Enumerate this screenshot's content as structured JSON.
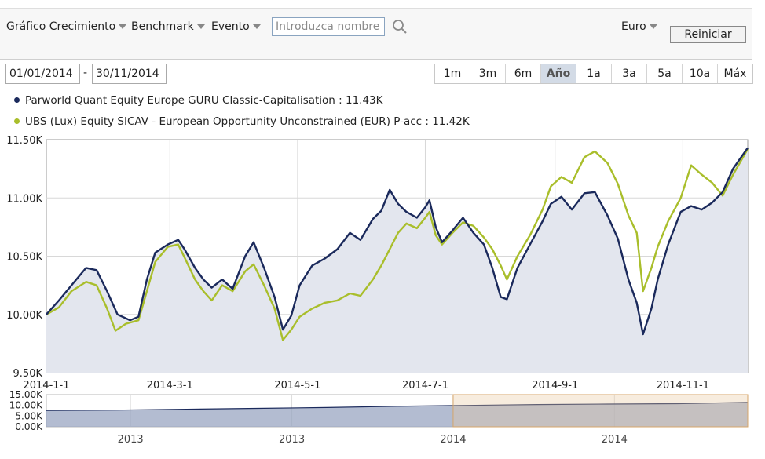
{
  "toolbar": {
    "menus": [
      {
        "label": "Gráfico Crecimiento"
      },
      {
        "label": "Benchmark"
      },
      {
        "label": "Evento"
      }
    ],
    "search_placeholder": "Introduzca nombre o",
    "currency": "Euro",
    "reset_label": "Reiniciar"
  },
  "date_range": {
    "start": "01/01/2014",
    "separator": "-",
    "end": "30/11/2014"
  },
  "range_buttons": [
    {
      "label": "1m",
      "active": false
    },
    {
      "label": "3m",
      "active": false
    },
    {
      "label": "6m",
      "active": false
    },
    {
      "label": "Año",
      "active": true
    },
    {
      "label": "1a",
      "active": false
    },
    {
      "label": "3a",
      "active": false
    },
    {
      "label": "5a",
      "active": false
    },
    {
      "label": "10a",
      "active": false
    },
    {
      "label": "Máx",
      "active": false
    }
  ],
  "legend": [
    {
      "text": "Parworld Quant Equity Europe GURU Classic-Capitalisation : 11.43K",
      "color": "#1b2a5c"
    },
    {
      "text": "UBS (Lux) Equity SICAV - European Opportunity Unconstrained (EUR) P-acc : 11.42K",
      "color": "#a9be2b"
    }
  ],
  "chart_data": [
    {
      "type": "line",
      "ylim": [
        9500,
        11500
      ],
      "xlim": [
        "2014-01-01",
        "2014-12-02"
      ],
      "yticks": [
        9500,
        10000,
        10500,
        11000,
        11500
      ],
      "ytick_labels": [
        "9.50K",
        "10.00K",
        "10.50K",
        "11.00K",
        "11.50K"
      ],
      "xticks": [
        "2014-01-01",
        "2014-03-01",
        "2014-05-01",
        "2014-07-01",
        "2014-09-01",
        "2014-11-01"
      ],
      "xtick_labels": [
        "2014-1-1",
        "2014-3-1",
        "2014-5-1",
        "2014-7-1",
        "2014-9-1",
        "2014-11-1"
      ],
      "grid": true,
      "series": [
        {
          "name": "Parworld Quant Equity Europe GURU Classic-Capitalisation",
          "color": "#1b2a5c",
          "filled": true,
          "points": [
            [
              "2014-01-01",
              10000
            ],
            [
              "2014-01-07",
              10120
            ],
            [
              "2014-01-13",
              10250
            ],
            [
              "2014-01-20",
              10400
            ],
            [
              "2014-01-25",
              10380
            ],
            [
              "2014-01-30",
              10200
            ],
            [
              "2014-02-04",
              10000
            ],
            [
              "2014-02-10",
              9950
            ],
            [
              "2014-02-14",
              9980
            ],
            [
              "2014-02-18",
              10300
            ],
            [
              "2014-02-22",
              10530
            ],
            [
              "2014-02-28",
              10600
            ],
            [
              "2014-03-05",
              10640
            ],
            [
              "2014-03-08",
              10560
            ],
            [
              "2014-03-13",
              10400
            ],
            [
              "2014-03-17",
              10300
            ],
            [
              "2014-03-21",
              10230
            ],
            [
              "2014-03-26",
              10300
            ],
            [
              "2014-03-31",
              10220
            ],
            [
              "2014-04-06",
              10500
            ],
            [
              "2014-04-10",
              10620
            ],
            [
              "2014-04-15",
              10400
            ],
            [
              "2014-04-20",
              10150
            ],
            [
              "2014-04-24",
              9870
            ],
            [
              "2014-04-28",
              9990
            ],
            [
              "2014-05-02",
              10250
            ],
            [
              "2014-05-08",
              10420
            ],
            [
              "2014-05-14",
              10480
            ],
            [
              "2014-05-20",
              10560
            ],
            [
              "2014-05-26",
              10700
            ],
            [
              "2014-05-31",
              10640
            ],
            [
              "2014-06-06",
              10820
            ],
            [
              "2014-06-10",
              10890
            ],
            [
              "2014-06-14",
              11070
            ],
            [
              "2014-06-18",
              10950
            ],
            [
              "2014-06-22",
              10880
            ],
            [
              "2014-06-27",
              10830
            ],
            [
              "2014-07-01",
              10920
            ],
            [
              "2014-07-03",
              10980
            ],
            [
              "2014-07-06",
              10750
            ],
            [
              "2014-07-09",
              10620
            ],
            [
              "2014-07-14",
              10720
            ],
            [
              "2014-07-19",
              10830
            ],
            [
              "2014-07-24",
              10700
            ],
            [
              "2014-07-29",
              10600
            ],
            [
              "2014-08-02",
              10400
            ],
            [
              "2014-08-06",
              10150
            ],
            [
              "2014-08-09",
              10130
            ],
            [
              "2014-08-14",
              10400
            ],
            [
              "2014-08-20",
              10600
            ],
            [
              "2014-08-26",
              10800
            ],
            [
              "2014-08-30",
              10950
            ],
            [
              "2014-09-04",
              11010
            ],
            [
              "2014-09-09",
              10900
            ],
            [
              "2014-09-15",
              11040
            ],
            [
              "2014-09-20",
              11050
            ],
            [
              "2014-09-26",
              10850
            ],
            [
              "2014-10-01",
              10650
            ],
            [
              "2014-10-06",
              10300
            ],
            [
              "2014-10-10",
              10100
            ],
            [
              "2014-10-13",
              9830
            ],
            [
              "2014-10-17",
              10050
            ],
            [
              "2014-10-20",
              10300
            ],
            [
              "2014-10-25",
              10600
            ],
            [
              "2014-10-31",
              10880
            ],
            [
              "2014-11-05",
              10930
            ],
            [
              "2014-11-10",
              10900
            ],
            [
              "2014-11-15",
              10960
            ],
            [
              "2014-11-20",
              11050
            ],
            [
              "2014-11-25",
              11250
            ],
            [
              "2014-12-02",
              11430
            ]
          ]
        },
        {
          "name": "UBS (Lux) Equity SICAV - European Opportunity Unconstrained (EUR) P-acc",
          "color": "#a9be2b",
          "filled": false,
          "points": [
            [
              "2014-01-01",
              10000
            ],
            [
              "2014-01-07",
              10060
            ],
            [
              "2014-01-13",
              10200
            ],
            [
              "2014-01-20",
              10280
            ],
            [
              "2014-01-25",
              10250
            ],
            [
              "2014-01-30",
              10050
            ],
            [
              "2014-02-03",
              9860
            ],
            [
              "2014-02-08",
              9920
            ],
            [
              "2014-02-14",
              9950
            ],
            [
              "2014-02-18",
              10200
            ],
            [
              "2014-02-22",
              10450
            ],
            [
              "2014-02-28",
              10580
            ],
            [
              "2014-03-05",
              10600
            ],
            [
              "2014-03-08",
              10490
            ],
            [
              "2014-03-13",
              10300
            ],
            [
              "2014-03-17",
              10200
            ],
            [
              "2014-03-21",
              10120
            ],
            [
              "2014-03-26",
              10250
            ],
            [
              "2014-03-31",
              10200
            ],
            [
              "2014-04-06",
              10370
            ],
            [
              "2014-04-10",
              10430
            ],
            [
              "2014-04-15",
              10250
            ],
            [
              "2014-04-20",
              10050
            ],
            [
              "2014-04-24",
              9780
            ],
            [
              "2014-04-28",
              9870
            ],
            [
              "2014-05-02",
              9980
            ],
            [
              "2014-05-08",
              10050
            ],
            [
              "2014-05-14",
              10100
            ],
            [
              "2014-05-20",
              10120
            ],
            [
              "2014-05-26",
              10180
            ],
            [
              "2014-05-31",
              10160
            ],
            [
              "2014-06-06",
              10300
            ],
            [
              "2014-06-10",
              10420
            ],
            [
              "2014-06-14",
              10560
            ],
            [
              "2014-06-18",
              10700
            ],
            [
              "2014-06-22",
              10780
            ],
            [
              "2014-06-27",
              10740
            ],
            [
              "2014-07-01",
              10830
            ],
            [
              "2014-07-03",
              10880
            ],
            [
              "2014-07-06",
              10680
            ],
            [
              "2014-07-09",
              10600
            ],
            [
              "2014-07-14",
              10700
            ],
            [
              "2014-07-19",
              10790
            ],
            [
              "2014-07-24",
              10760
            ],
            [
              "2014-07-29",
              10660
            ],
            [
              "2014-08-02",
              10560
            ],
            [
              "2014-08-06",
              10420
            ],
            [
              "2014-08-09",
              10300
            ],
            [
              "2014-08-14",
              10500
            ],
            [
              "2014-08-20",
              10680
            ],
            [
              "2014-08-26",
              10900
            ],
            [
              "2014-08-30",
              11100
            ],
            [
              "2014-09-04",
              11180
            ],
            [
              "2014-09-09",
              11130
            ],
            [
              "2014-09-15",
              11350
            ],
            [
              "2014-09-20",
              11400
            ],
            [
              "2014-09-26",
              11300
            ],
            [
              "2014-10-01",
              11120
            ],
            [
              "2014-10-06",
              10850
            ],
            [
              "2014-10-10",
              10700
            ],
            [
              "2014-10-13",
              10200
            ],
            [
              "2014-10-17",
              10400
            ],
            [
              "2014-10-20",
              10580
            ],
            [
              "2014-10-25",
              10800
            ],
            [
              "2014-10-31",
              11000
            ],
            [
              "2014-11-05",
              11280
            ],
            [
              "2014-11-10",
              11200
            ],
            [
              "2014-11-15",
              11130
            ],
            [
              "2014-11-20",
              11020
            ],
            [
              "2014-11-25",
              11200
            ],
            [
              "2014-12-02",
              11420
            ]
          ]
        }
      ]
    },
    {
      "type": "area",
      "ylim": [
        0,
        15000
      ],
      "yticks": [
        0,
        5000,
        10000,
        15000
      ],
      "ytick_labels": [
        "0.00K",
        "5.00K",
        "10.00K",
        "15.00K"
      ],
      "xtick_labels": [
        "2013",
        "2013",
        "2014",
        "2014"
      ],
      "series": [
        {
          "color": "#1b2a5c",
          "x": [
            0,
            0.1,
            0.2,
            0.3,
            0.4,
            0.5,
            0.6,
            0.7,
            0.8,
            0.9,
            1.0
          ],
          "values": [
            7600,
            7800,
            8200,
            8600,
            9000,
            9600,
            10000,
            10400,
            10600,
            10800,
            11400
          ]
        }
      ],
      "selected_range": [
        0.58,
        1.0
      ]
    }
  ]
}
